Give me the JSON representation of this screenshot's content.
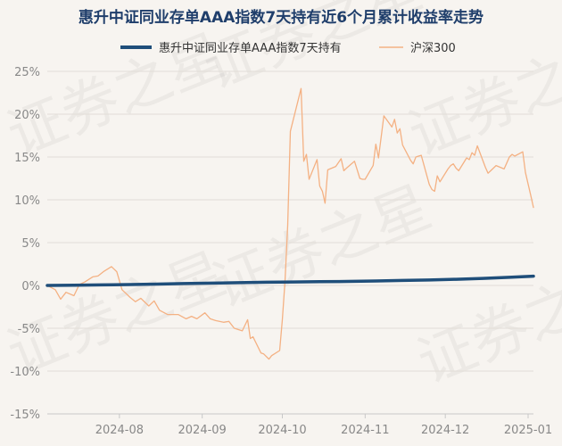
{
  "chart_data": {
    "type": "line",
    "title": "惠升中证同业存单AAA指数7天持有近6个月累计收益率走势",
    "watermark": "证券之星",
    "xlabel": "",
    "ylabel": "",
    "x_ticks": [
      "2024-08",
      "2024-09",
      "2024-10",
      "2024-11",
      "2024-12",
      "2025-01"
    ],
    "x_range": [
      "2024-07-05",
      "2025-01-03"
    ],
    "y_ticks": [
      "25%",
      "20%",
      "15%",
      "10%",
      "5%",
      "0%",
      "-5%",
      "-10%",
      "-15%"
    ],
    "ylim": [
      -15,
      25
    ],
    "grid": "horizontal",
    "legend": "top-center",
    "colors": {
      "fund": "#1f4e7a",
      "index": "#f4b183",
      "title": "#1f3e6b"
    },
    "series": [
      {
        "name": "惠升中证同业存单AAA指数7天持有",
        "points": [
          [
            "2024-07-05",
            0.0
          ],
          [
            "2024-07-15",
            0.02
          ],
          [
            "2024-07-25",
            0.06
          ],
          [
            "2024-08-05",
            0.1
          ],
          [
            "2024-08-15",
            0.16
          ],
          [
            "2024-08-25",
            0.22
          ],
          [
            "2024-09-05",
            0.27
          ],
          [
            "2024-09-15",
            0.32
          ],
          [
            "2024-09-25",
            0.37
          ],
          [
            "2024-10-05",
            0.41
          ],
          [
            "2024-10-15",
            0.44
          ],
          [
            "2024-10-25",
            0.47
          ],
          [
            "2024-11-05",
            0.52
          ],
          [
            "2024-11-15",
            0.58
          ],
          [
            "2024-11-25",
            0.64
          ],
          [
            "2024-12-05",
            0.72
          ],
          [
            "2024-12-15",
            0.82
          ],
          [
            "2024-12-25",
            0.95
          ],
          [
            "2025-01-03",
            1.08
          ]
        ]
      },
      {
        "name": "沪深300",
        "points": [
          [
            "2024-07-05",
            0.0
          ],
          [
            "2024-07-08",
            -0.5
          ],
          [
            "2024-07-10",
            -1.6
          ],
          [
            "2024-07-12",
            -0.8
          ],
          [
            "2024-07-15",
            -1.2
          ],
          [
            "2024-07-17",
            0.1
          ],
          [
            "2024-07-19",
            0.4
          ],
          [
            "2024-07-22",
            1.0
          ],
          [
            "2024-07-24",
            1.1
          ],
          [
            "2024-07-26",
            1.6
          ],
          [
            "2024-07-29",
            2.2
          ],
          [
            "2024-07-31",
            1.6
          ],
          [
            "2024-08-02",
            -0.5
          ],
          [
            "2024-08-05",
            -1.4
          ],
          [
            "2024-08-07",
            -1.9
          ],
          [
            "2024-08-09",
            -1.5
          ],
          [
            "2024-08-12",
            -2.4
          ],
          [
            "2024-08-14",
            -1.8
          ],
          [
            "2024-08-16",
            -2.9
          ],
          [
            "2024-08-19",
            -3.4
          ],
          [
            "2024-08-21",
            -3.4
          ],
          [
            "2024-08-23",
            -3.4
          ],
          [
            "2024-08-26",
            -3.9
          ],
          [
            "2024-08-28",
            -3.6
          ],
          [
            "2024-08-30",
            -3.9
          ],
          [
            "2024-09-02",
            -3.2
          ],
          [
            "2024-09-04",
            -3.9
          ],
          [
            "2024-09-06",
            -4.1
          ],
          [
            "2024-09-09",
            -4.3
          ],
          [
            "2024-09-11",
            -4.2
          ],
          [
            "2024-09-13",
            -5.0
          ],
          [
            "2024-09-16",
            -5.3
          ],
          [
            "2024-09-18",
            -4.0
          ],
          [
            "2024-09-19",
            -6.2
          ],
          [
            "2024-09-20",
            -6.0
          ],
          [
            "2024-09-23",
            -7.9
          ],
          [
            "2024-09-24",
            -8.0
          ],
          [
            "2024-09-26",
            -8.6
          ],
          [
            "2024-09-27",
            -8.2
          ],
          [
            "2024-09-30",
            -7.6
          ],
          [
            "2024-10-01",
            -4.0
          ],
          [
            "2024-10-02",
            0.5
          ],
          [
            "2024-10-03",
            7.0
          ],
          [
            "2024-10-04",
            18.0
          ],
          [
            "2024-10-08",
            23.0
          ],
          [
            "2024-10-09",
            14.5
          ],
          [
            "2024-10-10",
            15.3
          ],
          [
            "2024-10-11",
            12.4
          ],
          [
            "2024-10-14",
            14.7
          ],
          [
            "2024-10-15",
            11.6
          ],
          [
            "2024-10-16",
            11.0
          ],
          [
            "2024-10-17",
            9.6
          ],
          [
            "2024-10-18",
            13.5
          ],
          [
            "2024-10-21",
            13.9
          ],
          [
            "2024-10-23",
            14.8
          ],
          [
            "2024-10-24",
            13.4
          ],
          [
            "2024-10-25",
            13.7
          ],
          [
            "2024-10-28",
            14.5
          ],
          [
            "2024-10-30",
            12.5
          ],
          [
            "2024-10-31",
            12.4
          ],
          [
            "2024-11-01",
            12.4
          ],
          [
            "2024-11-04",
            14.0
          ],
          [
            "2024-11-05",
            16.5
          ],
          [
            "2024-11-06",
            14.9
          ],
          [
            "2024-11-08",
            19.8
          ],
          [
            "2024-11-11",
            18.5
          ],
          [
            "2024-11-12",
            19.4
          ],
          [
            "2024-11-13",
            17.8
          ],
          [
            "2024-11-14",
            18.3
          ],
          [
            "2024-11-15",
            16.4
          ],
          [
            "2024-11-18",
            14.6
          ],
          [
            "2024-11-19",
            14.2
          ],
          [
            "2024-11-20",
            15.0
          ],
          [
            "2024-11-21",
            15.1
          ],
          [
            "2024-11-22",
            15.2
          ],
          [
            "2024-11-25",
            11.8
          ],
          [
            "2024-11-26",
            11.2
          ],
          [
            "2024-11-27",
            11.0
          ],
          [
            "2024-11-28",
            12.8
          ],
          [
            "2024-11-29",
            12.1
          ],
          [
            "2024-12-02",
            13.6
          ],
          [
            "2024-12-03",
            14.0
          ],
          [
            "2024-12-04",
            14.2
          ],
          [
            "2024-12-05",
            13.7
          ],
          [
            "2024-12-06",
            13.4
          ],
          [
            "2024-12-09",
            14.9
          ],
          [
            "2024-12-10",
            14.7
          ],
          [
            "2024-12-11",
            15.5
          ],
          [
            "2024-12-12",
            15.2
          ],
          [
            "2024-12-13",
            16.3
          ],
          [
            "2024-12-16",
            13.8
          ],
          [
            "2024-12-17",
            13.1
          ],
          [
            "2024-12-18",
            13.4
          ],
          [
            "2024-12-19",
            13.7
          ],
          [
            "2024-12-20",
            14.0
          ],
          [
            "2024-12-23",
            13.6
          ],
          [
            "2024-12-24",
            14.3
          ],
          [
            "2024-12-25",
            15.0
          ],
          [
            "2024-12-26",
            15.3
          ],
          [
            "2024-12-27",
            15.1
          ],
          [
            "2024-12-30",
            15.6
          ],
          [
            "2024-12-31",
            13.2
          ],
          [
            "2025-01-02",
            10.5
          ],
          [
            "2025-01-03",
            9.1
          ]
        ]
      }
    ]
  }
}
